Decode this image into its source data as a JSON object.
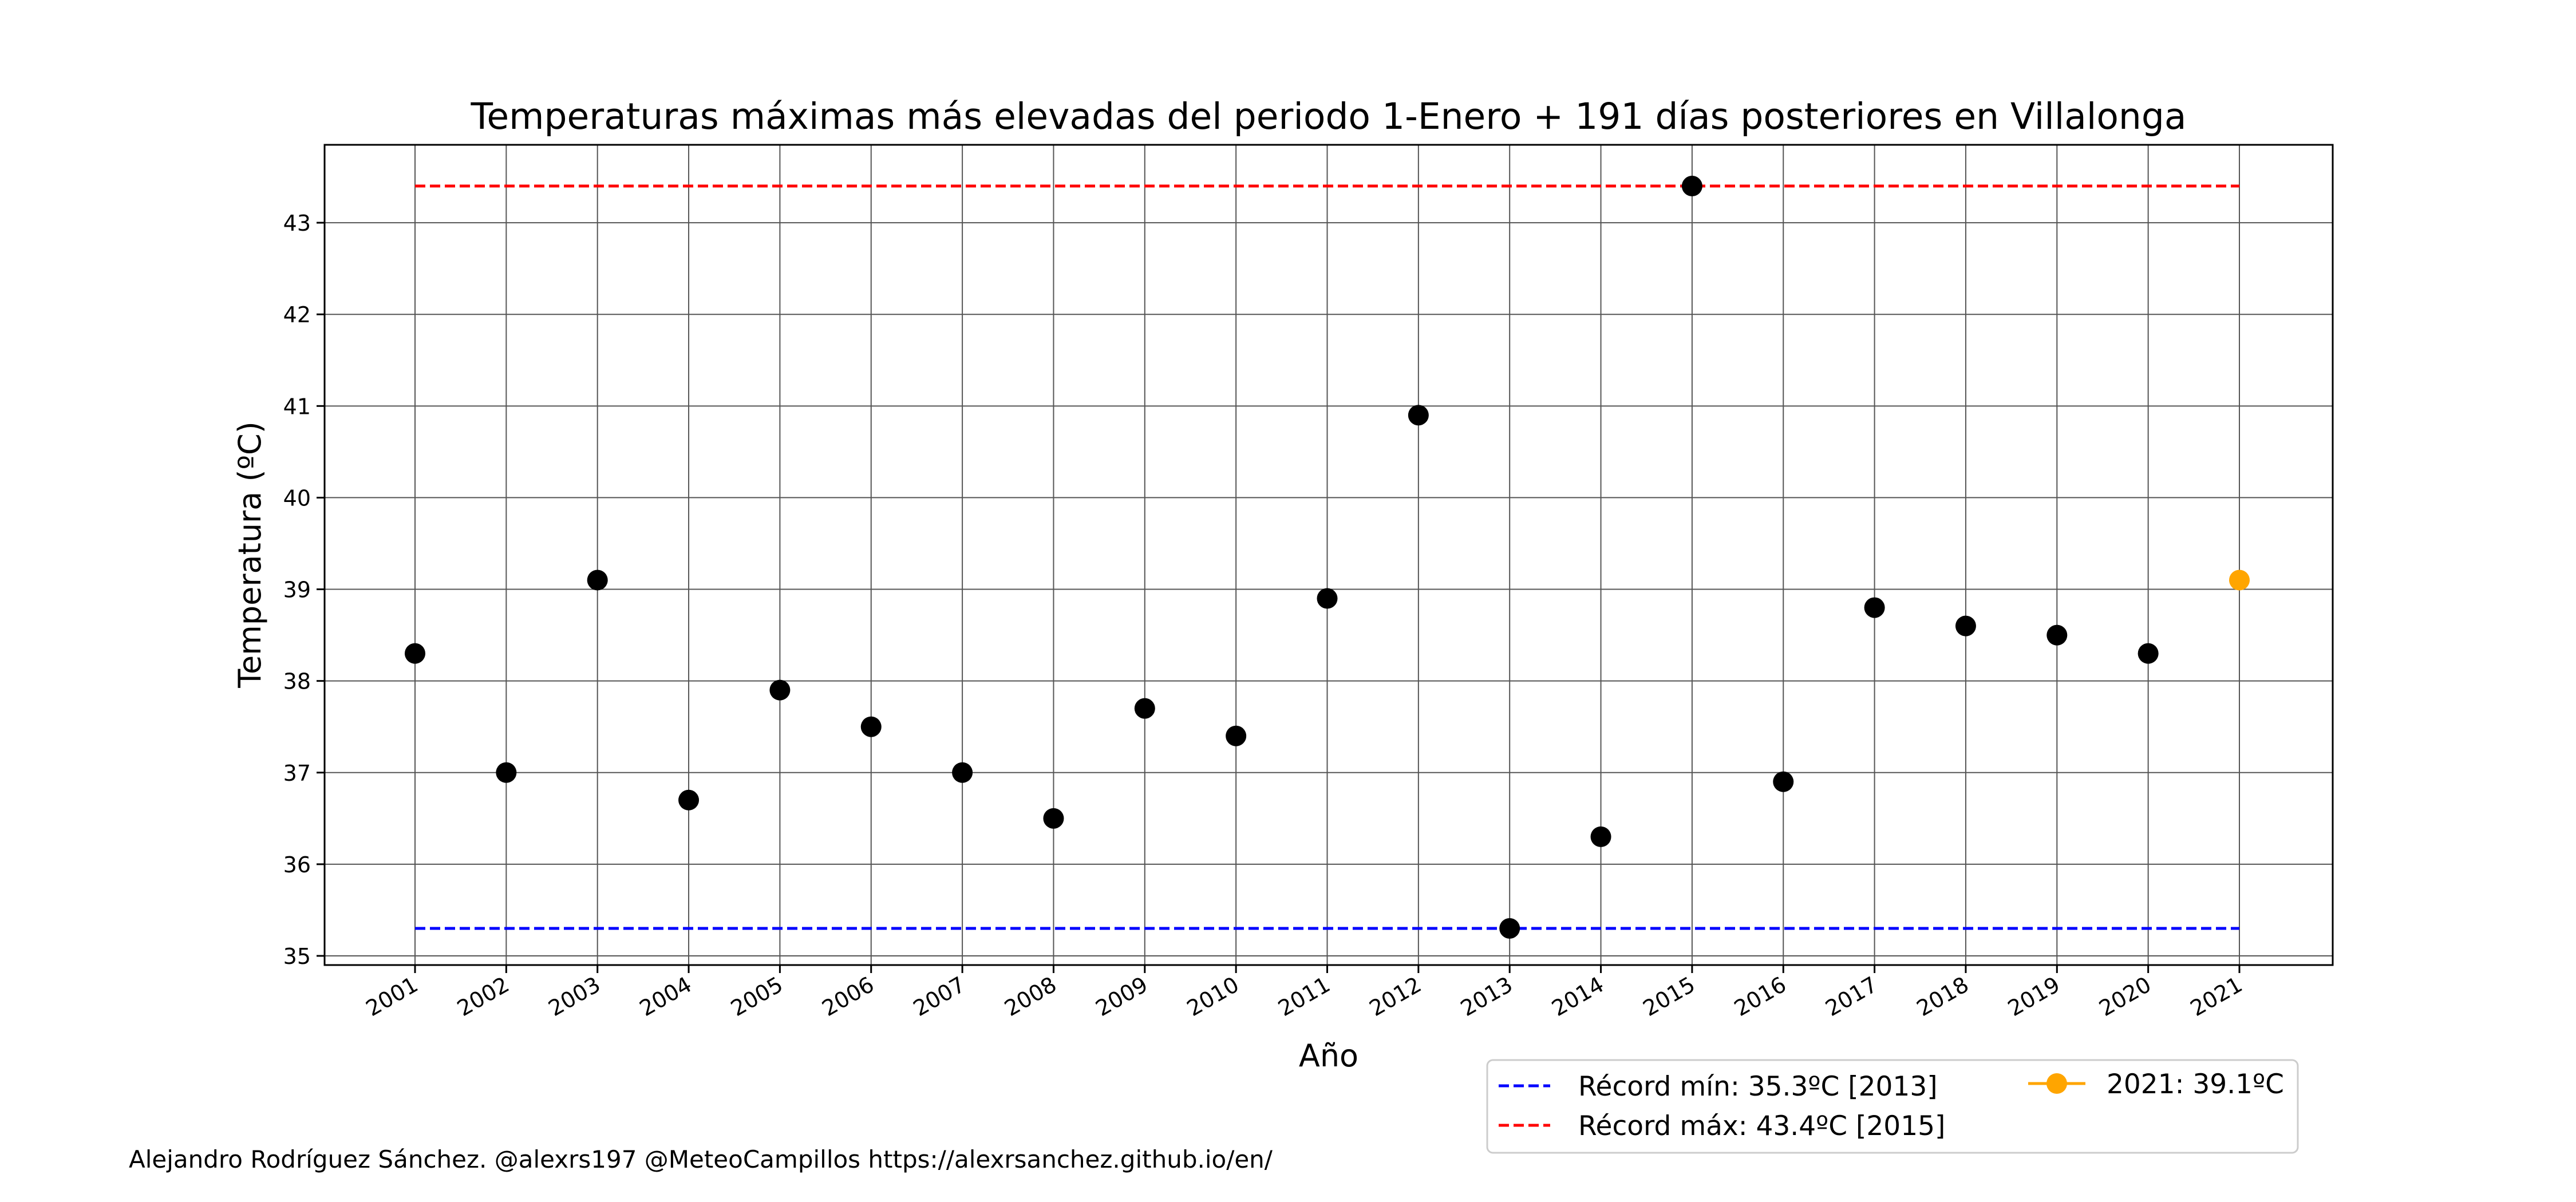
{
  "chart_data": {
    "type": "scatter",
    "title": "Temperaturas máximas más elevadas del periodo 1-Enero + 191 días posteriores en Villalonga",
    "xlabel": "Año",
    "ylabel": "Temperatura (ºC)",
    "ylim": [
      34.9,
      43.85
    ],
    "yticks": [
      35,
      36,
      37,
      38,
      39,
      40,
      41,
      42,
      43
    ],
    "grid": true,
    "categories": [
      "2001",
      "2002",
      "2003",
      "2004",
      "2005",
      "2006",
      "2007",
      "2008",
      "2009",
      "2010",
      "2011",
      "2012",
      "2013",
      "2014",
      "2015",
      "2016",
      "2017",
      "2018",
      "2019",
      "2020",
      "2021"
    ],
    "series": [
      {
        "values": [
          38.3,
          37.0,
          39.1,
          36.7,
          37.9,
          37.5,
          37.0,
          36.5,
          37.7,
          37.4,
          38.9,
          40.9,
          35.3,
          36.3,
          43.4,
          36.9,
          38.8,
          38.6,
          38.5,
          38.3,
          null
        ],
        "color": "#000000"
      },
      {
        "name": "2021: 39.1ºC",
        "values": [
          null,
          null,
          null,
          null,
          null,
          null,
          null,
          null,
          null,
          null,
          null,
          null,
          null,
          null,
          null,
          null,
          null,
          null,
          null,
          null,
          39.1
        ],
        "color": "#ffa500"
      }
    ],
    "reference_lines": [
      {
        "name": "Récord mín: 35.3ºC [2013]",
        "value": 35.3,
        "color": "#0000ff",
        "style": "dashed"
      },
      {
        "name": "Récord máx: 43.4ºC [2015]",
        "value": 43.4,
        "color": "#ff0000",
        "style": "dashed"
      }
    ],
    "legend_position": "bottom-right, below plot"
  },
  "credit": "Alejandro Rodríguez Sánchez. @alexrs197 @MeteoCampillos   https://alexrsanchez.github.io/en/"
}
